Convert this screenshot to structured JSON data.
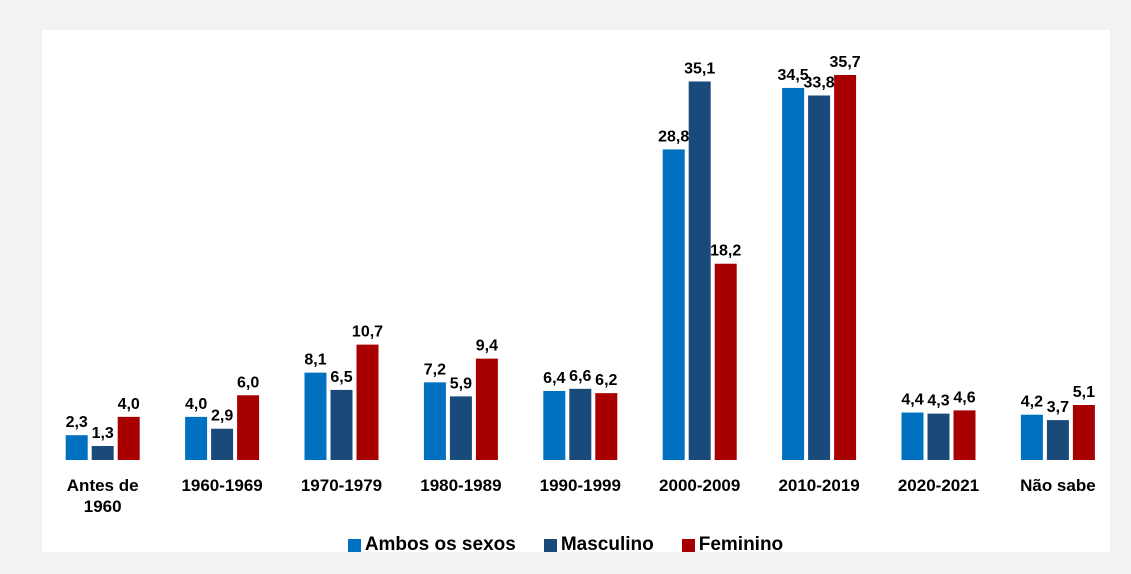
{
  "chart_data": {
    "type": "bar",
    "categories": [
      "Antes de 1960",
      "1960-1969",
      "1970-1979",
      "1980-1989",
      "1990-1999",
      "2000-2009",
      "2010-2019",
      "2020-2021",
      "Não sabe"
    ],
    "series": [
      {
        "name": "Ambos os sexos",
        "color": "#0070c0",
        "values": [
          2.3,
          4.0,
          8.1,
          7.2,
          6.4,
          28.8,
          34.5,
          4.4,
          4.2
        ],
        "value_labels": [
          "2,3",
          "4,0",
          "8,1",
          "7,2",
          "6,4",
          "28,8",
          "34,5",
          "4,4",
          "4,2"
        ]
      },
      {
        "name": "Masculino",
        "color": "#1a4a7a",
        "values": [
          1.3,
          2.9,
          6.5,
          5.9,
          6.6,
          35.1,
          33.8,
          4.3,
          3.7
        ],
        "value_labels": [
          "1,3",
          "2,9",
          "6,5",
          "5,9",
          "6,6",
          "35,1",
          "33,8",
          "4,3",
          "3,7"
        ]
      },
      {
        "name": "Feminino",
        "color": "#a80000",
        "values": [
          4.0,
          6.0,
          10.7,
          9.4,
          6.2,
          18.2,
          35.7,
          4.6,
          5.1
        ],
        "value_labels": [
          "4,0",
          "6,0",
          "10,7",
          "9,4",
          "6,2",
          "18,2",
          "35,7",
          "4,6",
          "5,1"
        ]
      }
    ],
    "legend": "bottom"
  }
}
